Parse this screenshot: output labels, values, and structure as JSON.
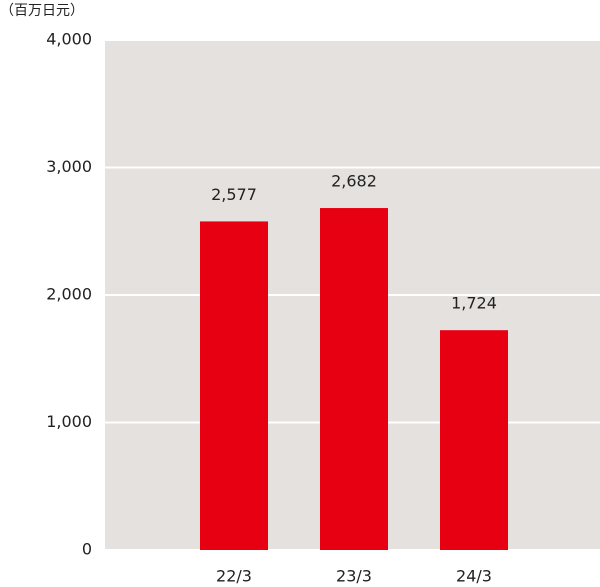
{
  "chart_data": {
    "type": "bar",
    "unit_label": "（百万日元）",
    "categories": [
      "22/3",
      "23/3",
      "24/3"
    ],
    "values": [
      2577,
      2682,
      1724
    ],
    "value_labels": [
      "2,577",
      "2,682",
      "1,724"
    ],
    "color": "#e60012",
    "ylim": [
      0,
      4000
    ],
    "yticks": [
      0,
      {
        "value": 1000,
        "label": "1,000"
      },
      {
        "value": 2000,
        "label": "2,000"
      },
      {
        "value": 3000,
        "label": "3,000"
      },
      {
        "value": 4000,
        "label": "4,000"
      }
    ],
    "grid": true
  }
}
